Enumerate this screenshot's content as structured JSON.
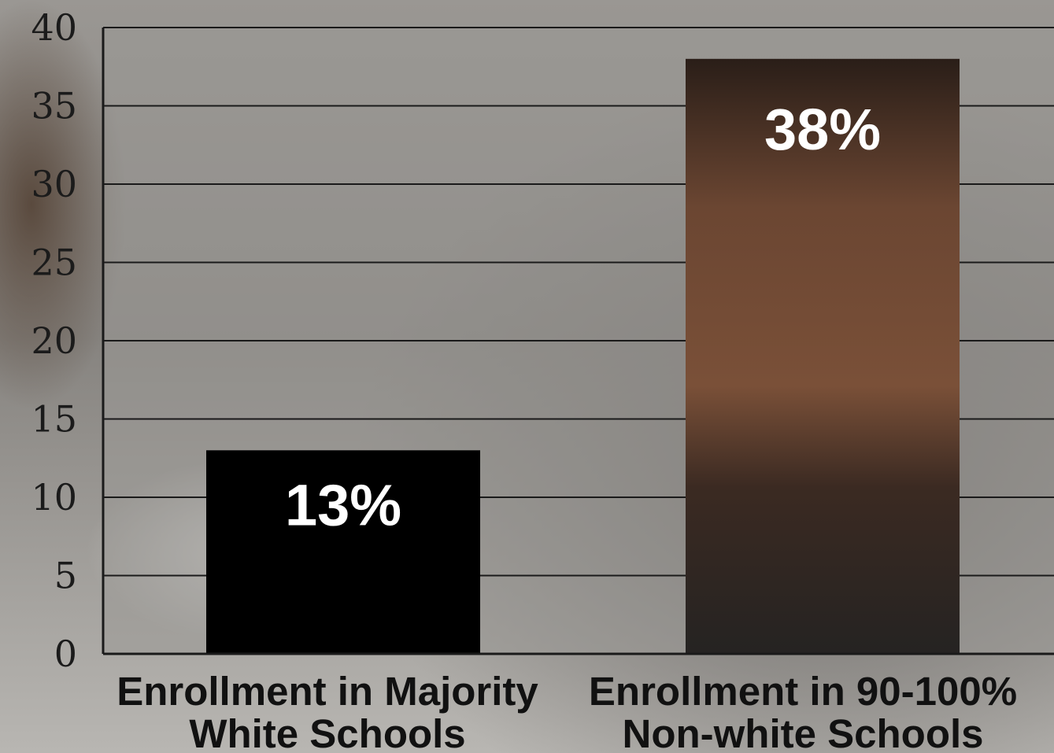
{
  "chart_data": {
    "type": "bar",
    "categories": [
      "Enrollment in Majority White Schools",
      "Enrollment in 90-100% Non-white Schools"
    ],
    "category_lines": [
      [
        "Enrollment in Majority",
        "White Schools"
      ],
      [
        "Enrollment in 90-100%",
        "Non-white Schools"
      ]
    ],
    "values": [
      13,
      38
    ],
    "data_labels": [
      "13%",
      "38%"
    ],
    "ylim": [
      0,
      40
    ],
    "yticks": [
      0,
      5,
      10,
      15,
      20,
      25,
      30,
      35,
      40
    ],
    "grid": true,
    "title": "",
    "xlabel": "",
    "ylabel": "",
    "colors": {
      "bar_majority_white": "#000000",
      "bar_non_white": "#3a2a22",
      "plot_bg": "#9b9995",
      "gridline": "#1a1a1a",
      "label_text": "#ffffff"
    }
  }
}
